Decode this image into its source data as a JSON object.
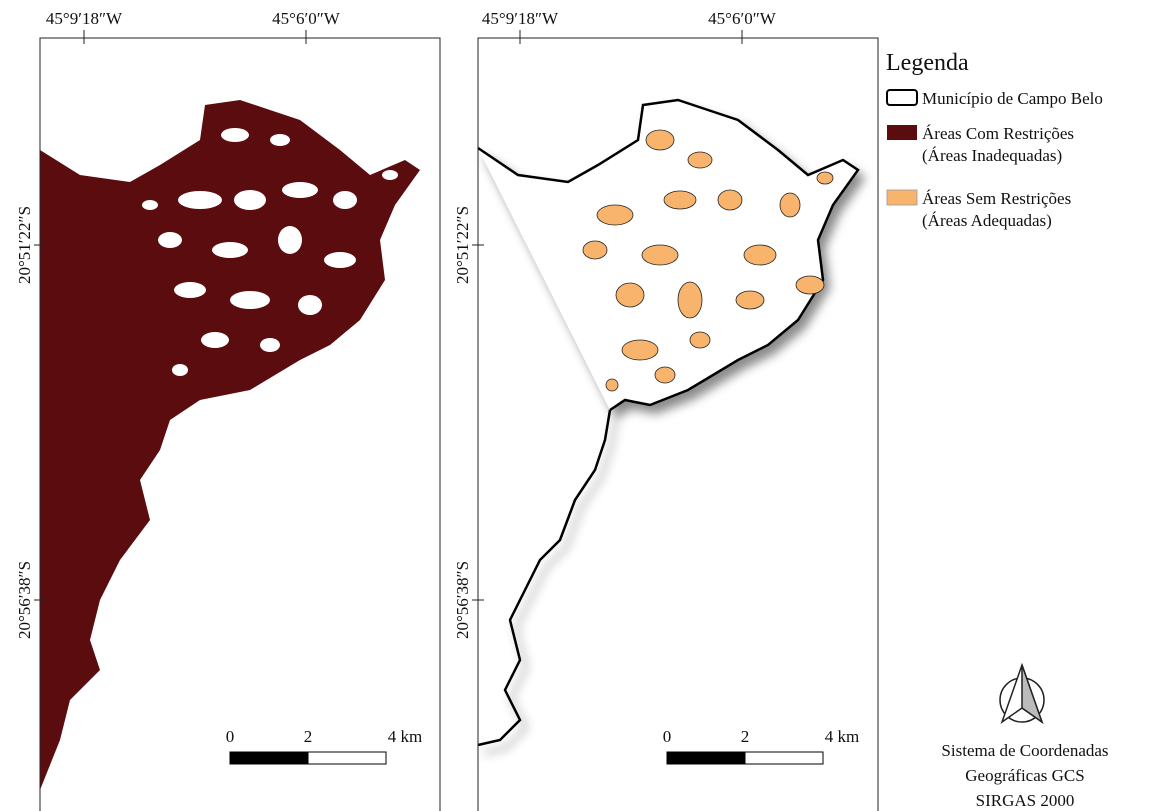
{
  "maps": [
    {
      "x_labels": [
        "45°9′18″W",
        "45°6′0″W"
      ],
      "y_labels": [
        "20°51′22″S",
        "20°56′38″S"
      ],
      "scale": [
        "0",
        "2",
        "4 km"
      ]
    },
    {
      "x_labels": [
        "45°9′18″W",
        "45°6′0″W"
      ],
      "y_labels": [
        "20°51′22″S",
        "20°56′38″S"
      ],
      "scale": [
        "0",
        "2",
        "4 km"
      ]
    }
  ],
  "legend": {
    "title": "Legenda",
    "items": [
      {
        "lines": [
          "Município de Campo Belo"
        ]
      },
      {
        "lines": [
          "Áreas Com Restrições",
          "(Áreas Inadequadas)"
        ]
      },
      {
        "lines": [
          "Áreas Sem Restrições",
          "(Áreas Adequadas)"
        ]
      }
    ]
  },
  "crs": [
    "Sistema de Coordenadas",
    "Geográficas GCS",
    "SIRGAS 2000"
  ]
}
